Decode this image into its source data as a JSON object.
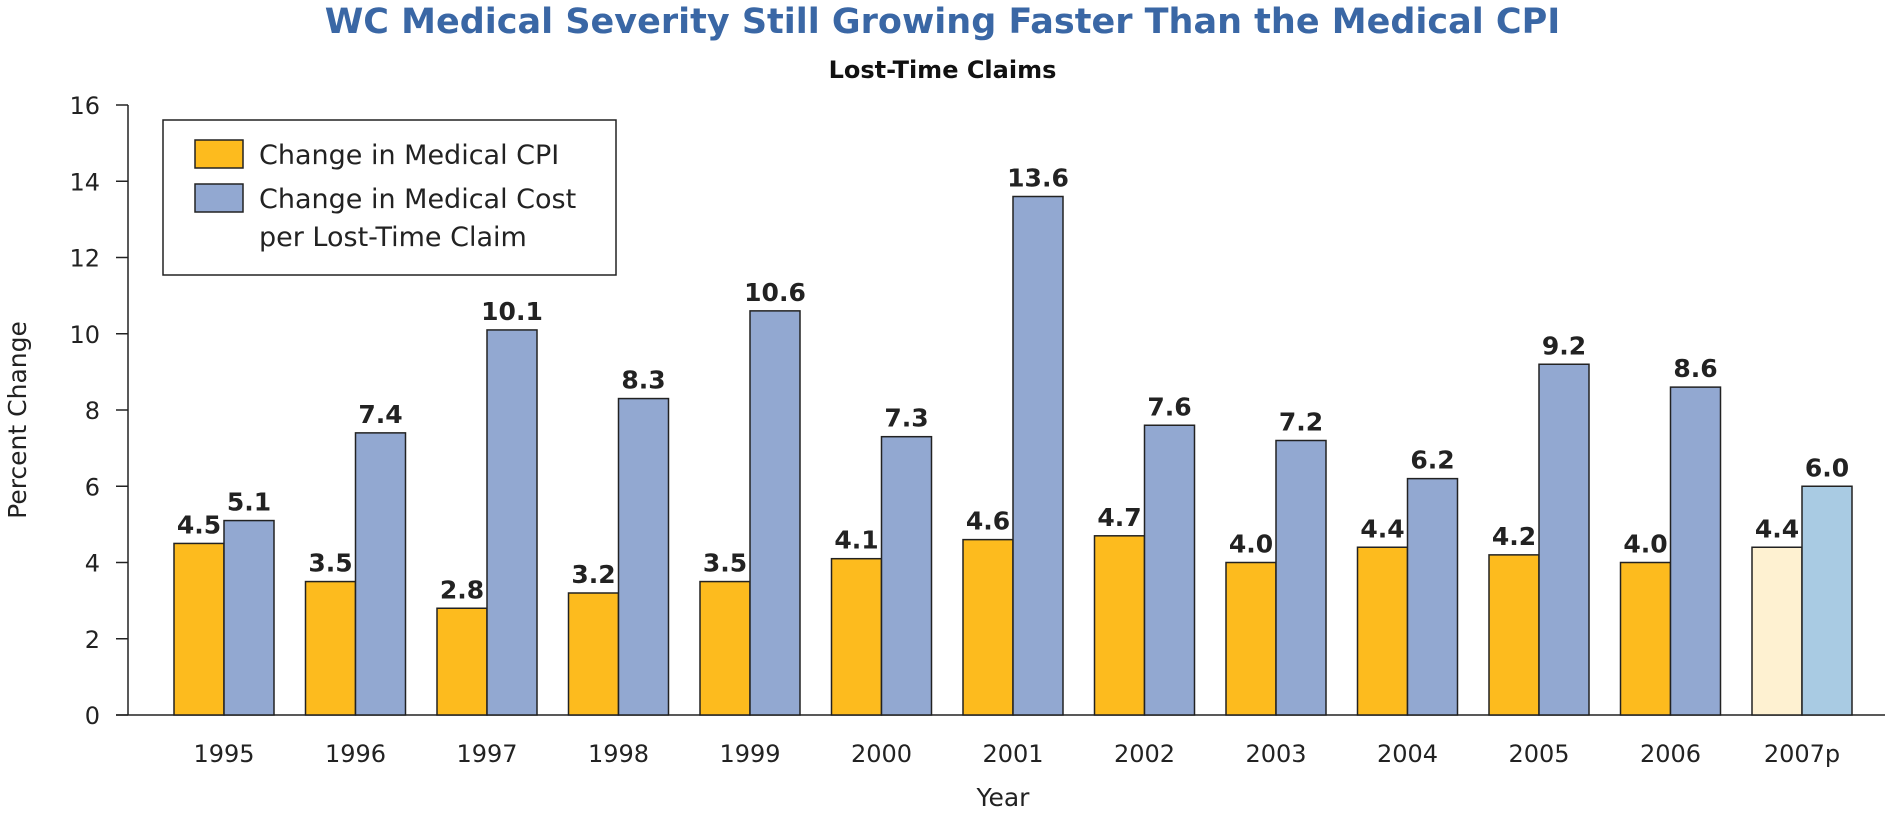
{
  "chart_data": {
    "type": "bar",
    "title": "WC Medical Severity Still Growing Faster Than the Medical CPI",
    "subtitle": "Lost-Time Claims",
    "xlabel": "Year",
    "ylabel": "Percent Change",
    "ylim": [
      0,
      16
    ],
    "yticks": [
      0,
      2,
      4,
      6,
      8,
      10,
      12,
      14,
      16
    ],
    "grid": false,
    "legend_position": "top-left",
    "categories": [
      "1995",
      "1996",
      "1997",
      "1998",
      "1999",
      "2000",
      "2001",
      "2002",
      "2003",
      "2004",
      "2005",
      "2006",
      "2007p"
    ],
    "series": [
      {
        "name": "Change in Medical CPI",
        "color": "#fdbb1e",
        "projected_color": "#fef1d1",
        "values": [
          4.5,
          3.5,
          2.8,
          3.2,
          3.5,
          4.1,
          4.6,
          4.7,
          4.0,
          4.4,
          4.2,
          4.0,
          4.4
        ],
        "labels": [
          "4.5",
          "3.5",
          "2.8",
          "3.2",
          "3.5",
          "4.1",
          "4.6",
          "4.7",
          "4.0",
          "4.4",
          "4.2",
          "4.0",
          "4.4"
        ]
      },
      {
        "name": "Change in Medical Cost per Lost-Time Claim",
        "legend_lines": [
          "Change in Medical Cost",
          "per Lost-Time Claim"
        ],
        "color": "#92a8d1",
        "projected_color": "#a9cbe3",
        "values": [
          5.1,
          7.4,
          10.1,
          8.3,
          10.6,
          7.3,
          13.6,
          7.6,
          7.2,
          6.2,
          9.2,
          8.6,
          6.0
        ],
        "labels": [
          "5.1",
          "7.4",
          "10.1",
          "8.3",
          "10.6",
          "7.3",
          "13.6",
          "7.6",
          "7.2",
          "6.2",
          "9.2",
          "8.6",
          "6.0"
        ]
      }
    ],
    "projected_categories": [
      "2007p"
    ]
  }
}
